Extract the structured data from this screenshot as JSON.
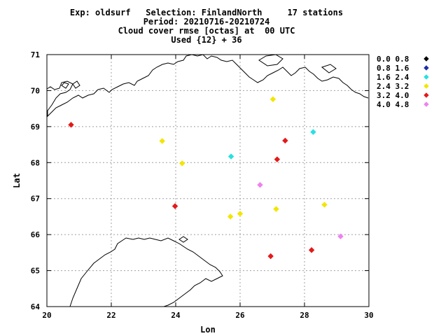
{
  "header": {
    "line1": "Exp: oldsurf   Selection: FinlandNorth     17 stations",
    "line2": "Period: 20210716-20210724",
    "line3": "Cloud cover rmse [octas] at  00 UTC",
    "line4": "Used {12} + 36"
  },
  "chart_data": {
    "type": "scatter",
    "xlabel": "Lon",
    "ylabel": "Lat",
    "xlim": [
      20,
      30
    ],
    "ylim": [
      64,
      71
    ],
    "xticks": [
      "20",
      "22",
      "24",
      "26",
      "28",
      "30"
    ],
    "yticks": [
      "64",
      "65",
      "66",
      "67",
      "68",
      "69",
      "70",
      "71"
    ],
    "grid": true,
    "legend_position": "right",
    "legend": [
      {
        "label": "0.0 0.8",
        "color": "#000000"
      },
      {
        "label": "0.8 1.6",
        "color": "#1f2fa8"
      },
      {
        "label": "1.6 2.4",
        "color": "#27e1e1"
      },
      {
        "label": "2.4 3.2",
        "color": "#f2e600"
      },
      {
        "label": "3.2 4.0",
        "color": "#e41a1a"
      },
      {
        "label": "4.0 4.8",
        "color": "#ee82ee"
      }
    ],
    "points": [
      {
        "lon": 20.75,
        "lat": 69.05,
        "bin": 4
      },
      {
        "lon": 23.58,
        "lat": 68.6,
        "bin": 3
      },
      {
        "lon": 24.2,
        "lat": 67.98,
        "bin": 3
      },
      {
        "lon": 23.98,
        "lat": 66.79,
        "bin": 4
      },
      {
        "lon": 25.72,
        "lat": 68.17,
        "bin": 2
      },
      {
        "lon": 25.7,
        "lat": 66.5,
        "bin": 3
      },
      {
        "lon": 26.0,
        "lat": 66.58,
        "bin": 3
      },
      {
        "lon": 26.62,
        "lat": 67.38,
        "bin": 5
      },
      {
        "lon": 26.95,
        "lat": 65.4,
        "bin": 4
      },
      {
        "lon": 27.02,
        "lat": 69.76,
        "bin": 3
      },
      {
        "lon": 27.12,
        "lat": 66.71,
        "bin": 3
      },
      {
        "lon": 27.15,
        "lat": 68.09,
        "bin": 4
      },
      {
        "lon": 27.4,
        "lat": 68.61,
        "bin": 4
      },
      {
        "lon": 28.22,
        "lat": 65.57,
        "bin": 4
      },
      {
        "lon": 28.27,
        "lat": 68.85,
        "bin": 2
      },
      {
        "lon": 28.62,
        "lat": 66.83,
        "bin": 3
      },
      {
        "lon": 29.12,
        "lat": 65.95,
        "bin": 5
      }
    ]
  }
}
